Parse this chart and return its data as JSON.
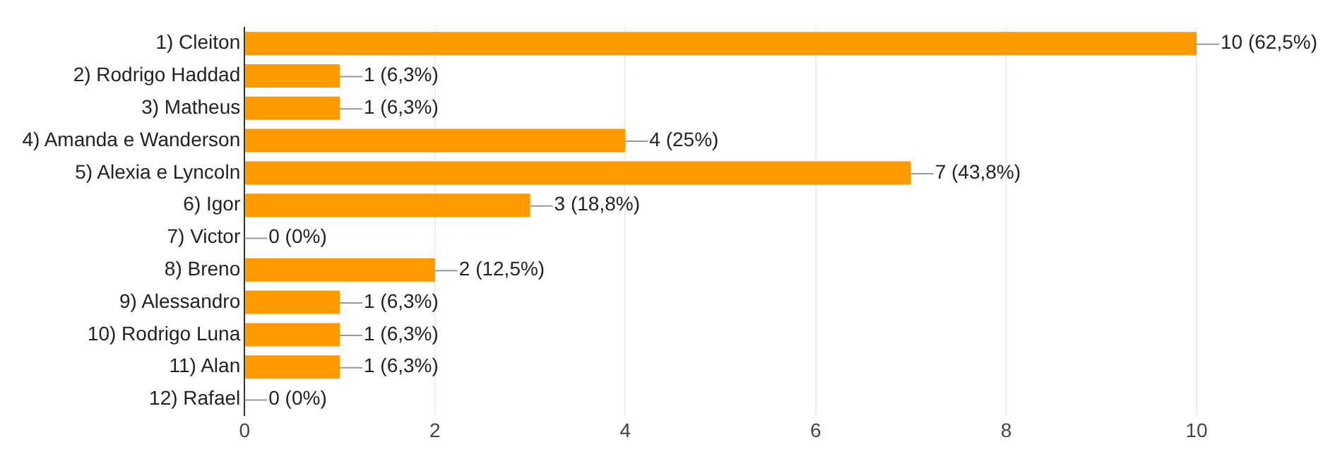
{
  "chart_data": {
    "type": "bar",
    "orientation": "horizontal",
    "categories": [
      "1) Cleiton",
      "2) Rodrigo Haddad",
      "3) Matheus",
      "4) Amanda e Wanderson",
      "5) Alexia e Lyncoln",
      "6) Igor",
      "7) Victor",
      "8) Breno",
      "9) Alessandro",
      "10) Rodrigo Luna",
      "11) Alan",
      "12) Rafael"
    ],
    "values": [
      10,
      1,
      1,
      4,
      7,
      3,
      0,
      2,
      1,
      1,
      1,
      0
    ],
    "value_labels": [
      "10 (62,5%)",
      "1 (6,3%)",
      "1 (6,3%)",
      "4 (25%)",
      "7 (43,8%)",
      "3 (18,8%)",
      "0 (0%)",
      "2 (12,5%)",
      "1 (6,3%)",
      "1 (6,3%)",
      "1 (6,3%)",
      "0 (0%)"
    ],
    "color": "#ff9900",
    "xlim": [
      0,
      10
    ],
    "xticks": [
      0,
      2,
      4,
      6,
      8,
      10
    ],
    "grid": "x",
    "legend": false
  }
}
